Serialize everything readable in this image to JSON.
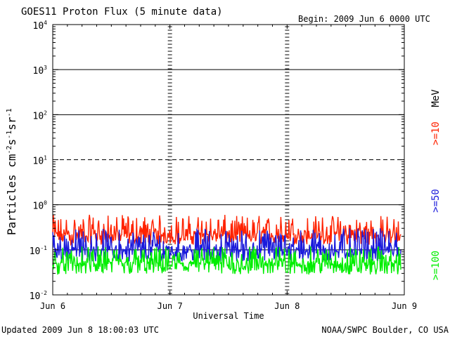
{
  "chart_data": {
    "type": "line",
    "title": "GOES11 Proton Flux (5 minute data)",
    "begin_label": "Begin: 2009 Jun 6 0000 UTC",
    "xlabel": "Universal Time",
    "ylabel_main": "Particles cm",
    "ylabel_exp1": "-2",
    "ylabel_mid1": "s",
    "ylabel_exp2": "-1",
    "ylabel_mid2": "sr",
    "ylabel_exp3": "-1",
    "y_scale": "log",
    "ylim": [
      0.01,
      10000
    ],
    "y_ticks": [
      {
        "value": 10000,
        "base": "10",
        "exp": "4"
      },
      {
        "value": 1000,
        "base": "10",
        "exp": "3"
      },
      {
        "value": 100,
        "base": "10",
        "exp": "2"
      },
      {
        "value": 10,
        "base": "10",
        "exp": "1"
      },
      {
        "value": 1,
        "base": "10",
        "exp": "0"
      },
      {
        "value": 0.1,
        "base": "10",
        "exp": "-1"
      },
      {
        "value": 0.01,
        "base": "10",
        "exp": "-2"
      }
    ],
    "x_range_days": [
      0,
      3
    ],
    "x_ticks": [
      {
        "day": 0,
        "label": "Jun 6"
      },
      {
        "day": 1,
        "label": "Jun 7"
      },
      {
        "day": 2,
        "label": "Jun 8"
      },
      {
        "day": 3,
        "label": "Jun 9"
      }
    ],
    "threshold_lines": [
      {
        "value": 1000,
        "style": "solid"
      },
      {
        "value": 100,
        "style": "solid"
      },
      {
        "value": 10,
        "style": "dashed"
      },
      {
        "value": 1,
        "style": "solid"
      },
      {
        "value": 0.1,
        "style": "solid"
      }
    ],
    "series": [
      {
        "name": ">=10",
        "color": "#ff2200",
        "baseline": 0.22,
        "low": 0.13,
        "high": 0.6
      },
      {
        "name": ">=50",
        "color": "#1a1adb",
        "baseline": 0.1,
        "low": 0.055,
        "high": 0.3
      },
      {
        "name": ">=100",
        "color": "#00ee00",
        "baseline": 0.05,
        "low": 0.028,
        "high": 0.12
      }
    ],
    "x_end_day": 2.97,
    "unit_label": "MeV",
    "grid": false,
    "legend": "right, rotated vertical"
  },
  "footer": {
    "updated": "Updated 2009 Jun  8 18:00:03 UTC",
    "source": "NOAA/SWPC Boulder, CO USA"
  }
}
